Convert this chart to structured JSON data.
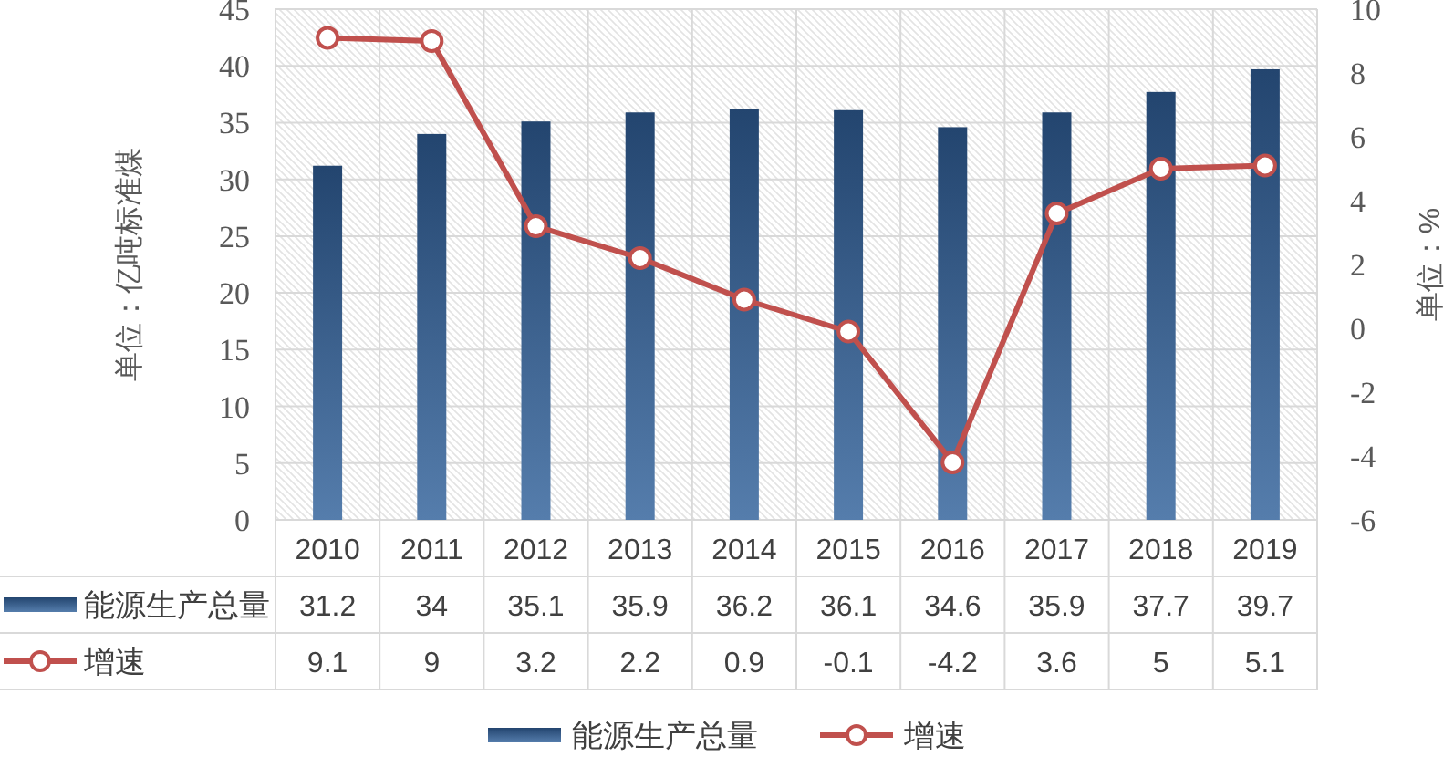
{
  "chart_data": {
    "type": "bar",
    "categories": [
      "2010",
      "2011",
      "2012",
      "2013",
      "2014",
      "2015",
      "2016",
      "2017",
      "2018",
      "2019"
    ],
    "series": [
      {
        "name": "能源生产总量",
        "color": "#30609a",
        "values": [
          31.2,
          34,
          35.1,
          35.9,
          36.2,
          36.1,
          34.6,
          35.9,
          37.7,
          39.7
        ]
      },
      {
        "name": "增速",
        "type": "line",
        "axis": "y2",
        "color": "#c0504d",
        "values": [
          9.1,
          9,
          3.2,
          2.2,
          0.9,
          -0.1,
          -4.2,
          3.6,
          5,
          5.1
        ]
      }
    ],
    "ylabel": "单位：亿吨标准煤",
    "y2label": "单位：%",
    "ylim": [
      0,
      45
    ],
    "yticks": [
      0,
      5,
      10,
      15,
      20,
      25,
      30,
      35,
      40,
      45
    ],
    "y2lim": [
      -6,
      10
    ],
    "y2ticks": [
      -6,
      -4,
      -2,
      0,
      2,
      4,
      6,
      8,
      10
    ],
    "grid": true,
    "legend": "bottom",
    "marker": "circle",
    "line_style": "solid",
    "data_labels": true
  }
}
